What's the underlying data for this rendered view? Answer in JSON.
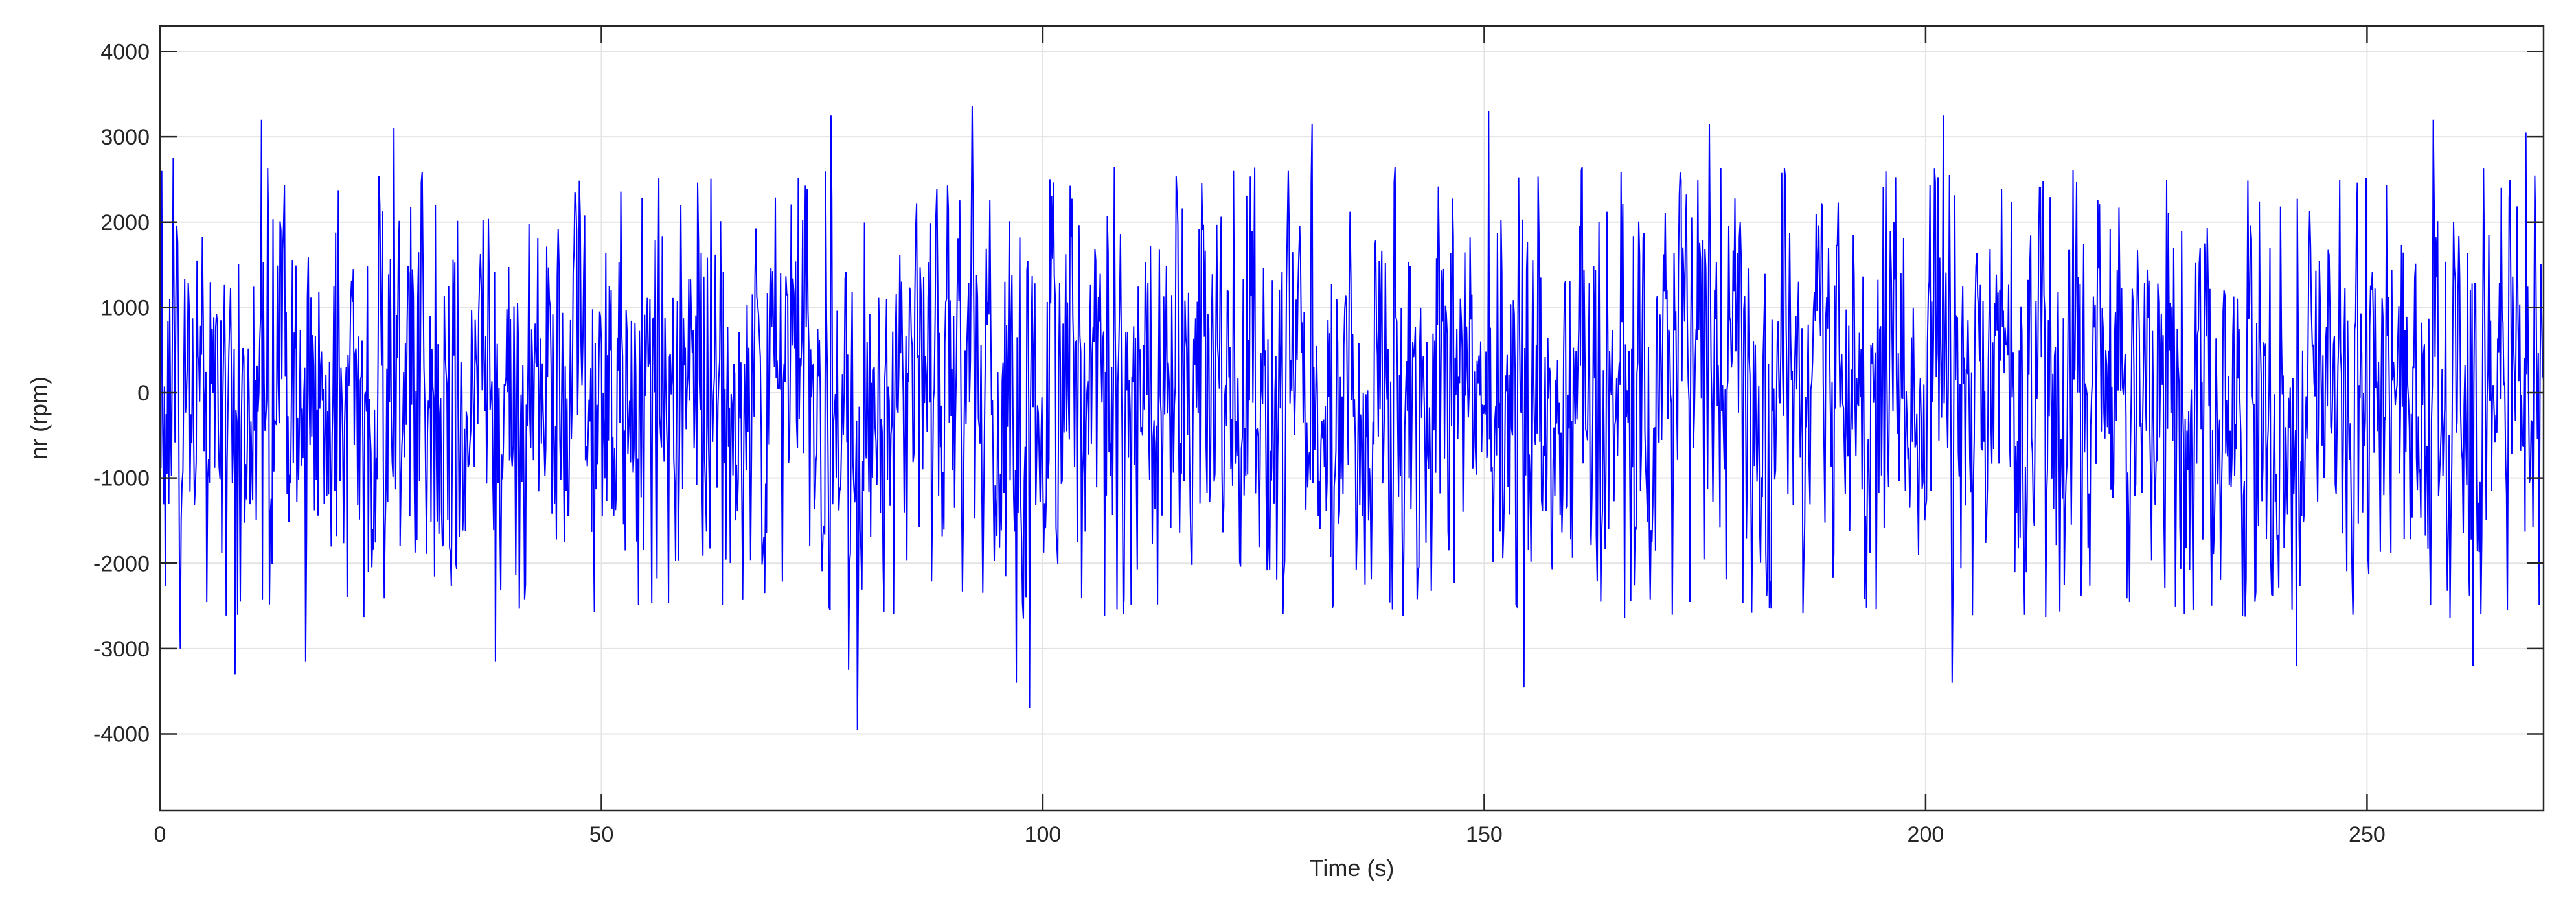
{
  "chart_data": {
    "type": "line",
    "title": "",
    "xlabel": "Time (s)",
    "ylabel": "nr (rpm)",
    "xlim": [
      0,
      270
    ],
    "ylim": [
      -4900,
      4300
    ],
    "xticks": [
      0,
      50,
      100,
      150,
      200,
      250
    ],
    "xtick_labels": [
      "0",
      "50",
      "100",
      "150",
      "200",
      "250"
    ],
    "yticks": [
      4000,
      3000,
      2000,
      1000,
      0,
      -1000,
      -2000,
      -3000,
      -4000
    ],
    "ytick_labels": [
      "4000",
      "3000",
      "2000",
      "1000",
      "0",
      "-1000",
      "-2000",
      "-3000",
      "-4000"
    ],
    "grid": true,
    "legend": "none",
    "series": [
      {
        "color": "#0000ff",
        "sample_interval_s": 0.1,
        "envelope_range": [
          -3950,
          3360
        ],
        "peaks": [
          {
            "x": 0.2,
            "y": 2600
          },
          {
            "x": 1.5,
            "y": 2750
          },
          {
            "x": 2.3,
            "y": -3000
          },
          {
            "x": 8.5,
            "y": -3300
          },
          {
            "x": 11.5,
            "y": 3200
          },
          {
            "x": 16.5,
            "y": -3150
          },
          {
            "x": 26.5,
            "y": 3100
          },
          {
            "x": 38.0,
            "y": -3150
          },
          {
            "x": 76.0,
            "y": 3250
          },
          {
            "x": 78.0,
            "y": -3250
          },
          {
            "x": 79.0,
            "y": -3950
          },
          {
            "x": 92.0,
            "y": 3360
          },
          {
            "x": 97.0,
            "y": -3400
          },
          {
            "x": 98.5,
            "y": -3700
          },
          {
            "x": 130.5,
            "y": 3150
          },
          {
            "x": 150.5,
            "y": 3300
          },
          {
            "x": 154.5,
            "y": -3450
          },
          {
            "x": 175.5,
            "y": 3150
          },
          {
            "x": 202.0,
            "y": 3250
          },
          {
            "x": 203.0,
            "y": -3400
          },
          {
            "x": 242.0,
            "y": -3200
          },
          {
            "x": 257.5,
            "y": 3200
          },
          {
            "x": 262.0,
            "y": -3200
          },
          {
            "x": 268.0,
            "y": 3050
          }
        ]
      }
    ]
  }
}
